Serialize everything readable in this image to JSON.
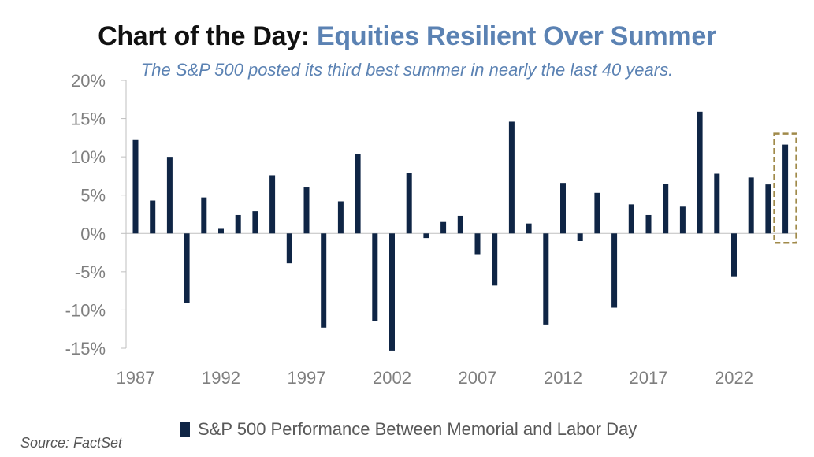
{
  "header": {
    "title_prefix": "Chart of the Day:",
    "title_main": "Equities Resilient Over Summer",
    "subtitle": "The S&P 500 posted its third best summer in nearly the last 40 years."
  },
  "colors": {
    "bar": "#0f2545",
    "title_accent": "#5b82b3",
    "highlight_box": "#a08a4a",
    "axis_text": "#7f7f7f"
  },
  "chart_data": {
    "type": "bar",
    "title": "Chart of the Day: Equities Resilient Over Summer",
    "subtitle": "The S&P 500 posted its third best summer in nearly the last 40 years.",
    "ylim": [
      -15,
      20
    ],
    "y_ticks": [
      20,
      15,
      10,
      5,
      0,
      -5,
      -10,
      -15
    ],
    "y_tick_labels": [
      "20%",
      "15%",
      "10%",
      "5%",
      "0%",
      "-5%",
      "-10%",
      "-15%"
    ],
    "x_tick_labels": [
      "1987",
      "1992",
      "1997",
      "2002",
      "2007",
      "2012",
      "2017",
      "2022"
    ],
    "x_tick_years": [
      1987,
      1992,
      1997,
      2002,
      2007,
      2012,
      2017,
      2022
    ],
    "categories": [
      1987,
      1988,
      1989,
      1990,
      1991,
      1992,
      1993,
      1994,
      1995,
      1996,
      1997,
      1998,
      1999,
      2000,
      2001,
      2002,
      2003,
      2004,
      2005,
      2006,
      2007,
      2008,
      2009,
      2010,
      2011,
      2012,
      2013,
      2014,
      2015,
      2016,
      2017,
      2018,
      2019,
      2020,
      2021,
      2022,
      2023,
      2024,
      2025
    ],
    "series": [
      {
        "name": "S&P 500 Performance Between Memorial and Labor Day",
        "values": [
          12.2,
          4.3,
          10.0,
          -9.1,
          4.7,
          0.6,
          2.4,
          2.9,
          7.6,
          -3.9,
          6.1,
          -12.3,
          4.2,
          10.4,
          -11.4,
          -15.3,
          7.9,
          -0.6,
          1.5,
          2.3,
          -2.7,
          -6.8,
          14.6,
          1.3,
          -11.9,
          6.6,
          -1.0,
          5.3,
          -9.7,
          3.8,
          2.4,
          6.5,
          3.5,
          15.9,
          7.8,
          -5.6,
          7.3,
          6.4,
          11.6
        ]
      }
    ],
    "highlight": "2025",
    "grid": false,
    "legend": "bottom"
  },
  "legend": {
    "label": "S&P 500 Performance Between Memorial and Labor Day"
  },
  "footer": {
    "source": "Source: FactSet"
  }
}
